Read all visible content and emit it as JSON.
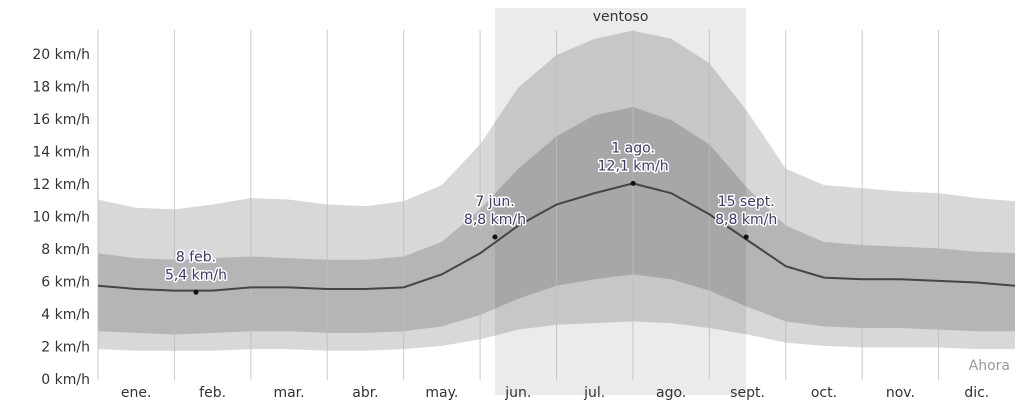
{
  "chart_data": {
    "type": "band-line",
    "categories": [
      null,
      "ene.",
      null,
      "feb.",
      null,
      "mar.",
      null,
      "abr.",
      null,
      "may.",
      null,
      "jun.",
      null,
      "jul.",
      null,
      "ago.",
      null,
      "sept.",
      null,
      "oct.",
      null,
      "nov.",
      null,
      "dic.",
      null
    ],
    "bands": [
      {
        "color": "#d8d8d8",
        "high": [
          11.1,
          10.6,
          10.5,
          10.8,
          11.2,
          11.1,
          10.8,
          10.7,
          11.0,
          12.0,
          14.5,
          18.0,
          20.0,
          21.0,
          21.5,
          21.0,
          19.5,
          16.5,
          13.0,
          12.0,
          11.8,
          11.6,
          11.5,
          11.2,
          11.0
        ],
        "low": [
          1.9,
          1.8,
          1.8,
          1.8,
          1.9,
          1.9,
          1.8,
          1.8,
          1.9,
          2.1,
          2.5,
          3.1,
          3.4,
          3.5,
          3.6,
          3.5,
          3.2,
          2.8,
          2.3,
          2.1,
          2.0,
          2.0,
          2.0,
          1.9,
          1.9
        ]
      },
      {
        "color": "#d6d6d6",
        "high": [
          7.8,
          7.5,
          7.4,
          7.5,
          7.6,
          7.5,
          7.4,
          7.4,
          7.6,
          8.5,
          10.5,
          13.0,
          15.0,
          16.3,
          16.8,
          16.0,
          14.5,
          11.8,
          9.5,
          8.5,
          8.3,
          8.2,
          8.1,
          7.9,
          7.8
        ],
        "low": [
          3.0,
          2.9,
          2.8,
          2.9,
          3.0,
          3.0,
          2.9,
          2.9,
          3.0,
          3.3,
          4.0,
          5.0,
          5.8,
          6.2,
          6.5,
          6.2,
          5.5,
          4.5,
          3.6,
          3.3,
          3.2,
          3.2,
          3.1,
          3.0,
          3.0
        ]
      }
    ],
    "line": {
      "color": "#454545",
      "values": [
        5.8,
        5.6,
        5.5,
        5.5,
        5.7,
        5.7,
        5.6,
        5.6,
        5.7,
        6.5,
        7.8,
        9.5,
        10.8,
        11.5,
        12.1,
        11.5,
        10.2,
        8.6,
        7.0,
        6.3,
        6.2,
        6.2,
        6.1,
        6.0,
        5.8
      ]
    },
    "annotations": [
      {
        "label": "8 feb.",
        "day": 39,
        "value": 5.4,
        "value_label": "5,4 km/h"
      },
      {
        "label": "7 jun.",
        "day": 158,
        "value": 8.8,
        "value_label": "8,8 km/h"
      },
      {
        "label": "1 ago.",
        "day": 213,
        "value": 12.1,
        "value_label": "12,1 km/h"
      },
      {
        "label": "15 sept.",
        "day": 258,
        "value": 8.8,
        "value_label": "8,8 km/h"
      }
    ],
    "highlight": {
      "label": "ventoso",
      "from": 158,
      "to": 258,
      "color": "#ebebeb"
    },
    "now_label": "Ahora",
    "ylim": [
      0,
      20
    ],
    "yticks": [
      {
        "value": 0,
        "label": "0 km/h"
      },
      {
        "value": 2,
        "label": "2 km/h"
      },
      {
        "value": 4,
        "label": "4 km/h"
      },
      {
        "value": 6,
        "label": "6 km/h"
      },
      {
        "value": 8,
        "label": "8 km/h"
      },
      {
        "value": 10,
        "label": "10 km/h"
      },
      {
        "value": 12,
        "label": "12 km/h"
      },
      {
        "value": 14,
        "label": "14 km/h"
      },
      {
        "value": 16,
        "label": "16 km/h"
      },
      {
        "value": 18,
        "label": "18 km/h"
      },
      {
        "value": 20,
        "label": "20 km/h"
      }
    ],
    "grid": true
  }
}
